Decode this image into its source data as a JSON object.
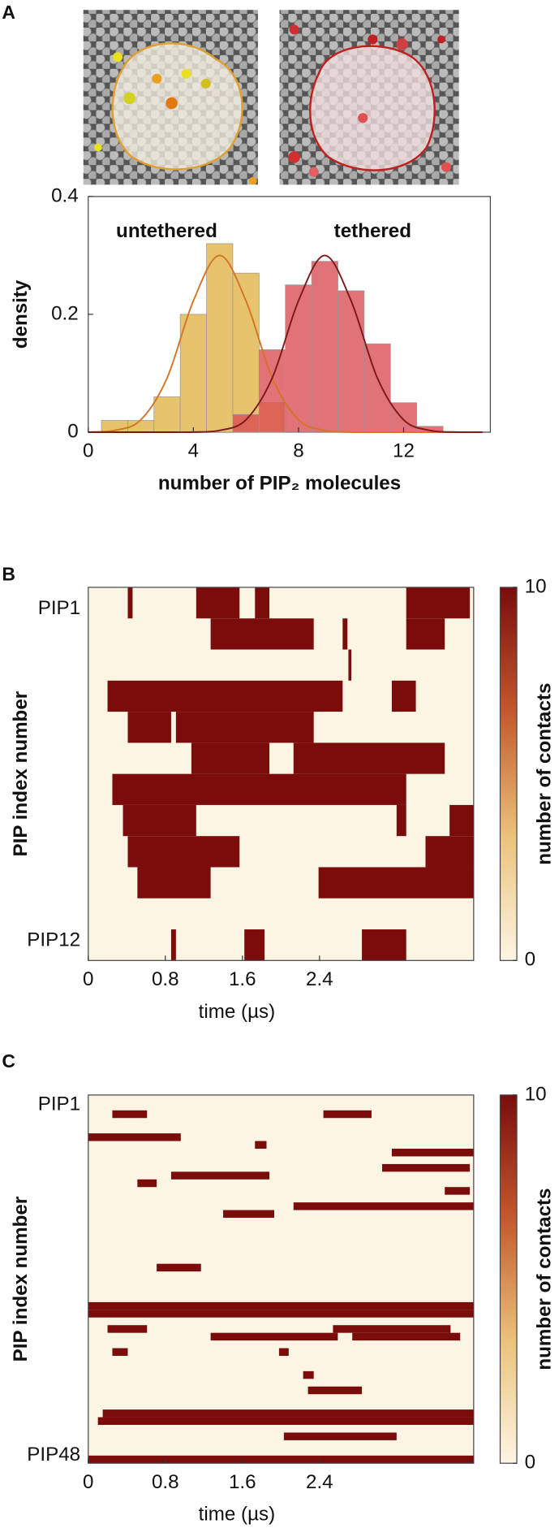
{
  "chart_data": [
    {
      "type": "histogram",
      "panel": "A",
      "ylabel": "density",
      "xlabel": "number of PIP₂ molecules",
      "xlim": [
        0,
        15.3
      ],
      "ylim": [
        0,
        0.4
      ],
      "xticks": [
        0,
        4,
        8,
        12
      ],
      "yticks": [
        0,
        0.2,
        0.4
      ],
      "series": [
        {
          "name": "untethered",
          "color": "#e3bc5c",
          "bins": [
            0.5,
            1.5,
            2.5,
            3.5,
            4.5,
            5.5,
            6.5,
            7.5
          ],
          "values": [
            0.02,
            0.02,
            0.06,
            0.2,
            0.32,
            0.27,
            0.05
          ]
        },
        {
          "name": "tethered",
          "color": "#d94a52",
          "bins": [
            5.5,
            6.5,
            7.5,
            8.5,
            9.5,
            10.5,
            11.5,
            12.5,
            13.5
          ],
          "values": [
            0.03,
            0.14,
            0.25,
            0.29,
            0.24,
            0.15,
            0.05,
            0.01
          ]
        }
      ],
      "fits": [
        {
          "color": "#d27526",
          "x": [
            0,
            1,
            2,
            3,
            4,
            5,
            6,
            7,
            8,
            9,
            10,
            11,
            12,
            13,
            14,
            15
          ],
          "y": [
            0.0002,
            0.003,
            0.021,
            0.092,
            0.223,
            0.3,
            0.223,
            0.092,
            0.021,
            0.003,
            0.0002,
            0,
            0,
            0,
            0,
            0
          ]
        },
        {
          "color": "#7a1a1a",
          "x": [
            0,
            1,
            2,
            3,
            4,
            5,
            6,
            7,
            8,
            9,
            10,
            11,
            12,
            13,
            14,
            15
          ],
          "y": [
            0,
            0,
            0,
            0,
            0.0002,
            0.003,
            0.021,
            0.092,
            0.223,
            0.3,
            0.223,
            0.092,
            0.021,
            0.003,
            0.0002,
            0
          ]
        }
      ]
    },
    {
      "type": "heatmap",
      "panel": "B",
      "ylabel": "PIP index number",
      "xlabel": "time (µs)",
      "clabel": "number of contacts",
      "xlim": [
        0,
        4
      ],
      "xticks": [
        0,
        0.8,
        1.6,
        2.4
      ],
      "clim": [
        0,
        10
      ],
      "cticks": [
        0,
        10
      ],
      "colormap": [
        "#fdf5e4",
        "#ebc27a",
        "#c4582e",
        "#7a0c0c"
      ],
      "categories": [
        "PIP1",
        null,
        null,
        null,
        null,
        null,
        null,
        null,
        null,
        null,
        null,
        "PIP12"
      ],
      "rows": [
        [
          [
            0.41,
            0.46,
            10
          ],
          [
            1.12,
            1.57,
            10
          ],
          [
            1.73,
            1.88,
            10
          ],
          [
            3.3,
            3.96,
            10
          ]
        ],
        [
          [
            1.27,
            2.34,
            10
          ],
          [
            2.64,
            2.69,
            10
          ],
          [
            3.3,
            3.7,
            10
          ]
        ],
        [
          [
            2.7,
            2.73,
            10
          ]
        ],
        [
          [
            0.2,
            2.64,
            10
          ],
          [
            3.15,
            3.4,
            10
          ]
        ],
        [
          [
            0.41,
            0.86,
            10
          ],
          [
            0.91,
            2.34,
            10
          ]
        ],
        [
          [
            1.07,
            1.88,
            10
          ],
          [
            2.13,
            3.7,
            10
          ]
        ],
        [
          [
            0.25,
            3.3,
            10
          ]
        ],
        [
          [
            0.36,
            1.12,
            10
          ],
          [
            3.2,
            3.3,
            10
          ],
          [
            3.75,
            4,
            10
          ]
        ],
        [
          [
            0.41,
            1.57,
            10
          ],
          [
            3.5,
            4,
            10
          ]
        ],
        [
          [
            0.51,
            1.27,
            10
          ],
          [
            2.39,
            4,
            10
          ]
        ],
        [],
        [
          [
            0.86,
            0.91,
            10
          ],
          [
            1.62,
            1.83,
            10
          ],
          [
            2.84,
            3.3,
            10
          ]
        ]
      ]
    },
    {
      "type": "heatmap",
      "panel": "C",
      "ylabel": "PIP index number",
      "xlabel": "time (µs)",
      "clabel": "number of contacts",
      "xlim": [
        0,
        4
      ],
      "xticks": [
        0,
        0.8,
        1.6,
        2.4
      ],
      "clim": [
        0,
        10
      ],
      "cticks": [
        0,
        10
      ],
      "colormap": [
        "#fdf5e4",
        "#ebc27a",
        "#c4582e",
        "#7a0c0c"
      ],
      "categories": [
        "PIP1",
        null,
        null,
        null,
        null,
        null,
        null,
        null,
        null,
        null,
        null,
        null,
        null,
        null,
        null,
        null,
        null,
        null,
        null,
        null,
        null,
        null,
        null,
        null,
        null,
        null,
        null,
        null,
        null,
        null,
        null,
        null,
        null,
        null,
        null,
        null,
        null,
        null,
        null,
        null,
        null,
        null,
        null,
        null,
        null,
        null,
        null,
        "PIP48"
      ],
      "rows": [
        [],
        [],
        [
          [
            0.25,
            0.61,
            10
          ],
          [
            2.44,
            2.94,
            10
          ]
        ],
        [],
        [],
        [
          [
            0,
            0.96,
            10
          ]
        ],
        [
          [
            1.73,
            1.85,
            10
          ]
        ],
        [
          [
            3.15,
            4,
            10
          ]
        ],
        [],
        [
          [
            3.05,
            3.96,
            10
          ]
        ],
        [
          [
            0.86,
            1.88,
            10
          ]
        ],
        [
          [
            0.51,
            0.71,
            10
          ]
        ],
        [
          [
            3.7,
            3.96,
            10
          ]
        ],
        [],
        [
          [
            2.13,
            4,
            10
          ]
        ],
        [
          [
            1.4,
            1.93,
            10
          ]
        ],
        [],
        [],
        [],
        [],
        [],
        [],
        [
          [
            0.71,
            1.17,
            10
          ]
        ],
        [],
        [],
        [],
        [],
        [
          [
            0,
            4,
            10
          ]
        ],
        [
          [
            0,
            4,
            10
          ]
        ],
        [],
        [
          [
            0.2,
            0.61,
            10
          ],
          [
            2.54,
            3.76,
            10
          ]
        ],
        [
          [
            1.27,
            2.59,
            10
          ],
          [
            2.74,
            3.86,
            10
          ]
        ],
        [],
        [
          [
            0.25,
            0.41,
            10
          ],
          [
            1.98,
            2.08,
            10
          ]
        ],
        [],
        [],
        [
          [
            2.23,
            2.34,
            10
          ]
        ],
        [],
        [
          [
            2.28,
            2.84,
            10
          ]
        ],
        [],
        [],
        [
          [
            0.15,
            4,
            10
          ]
        ],
        [
          [
            0.1,
            4,
            10
          ]
        ],
        [],
        [
          [
            2.03,
            3.2,
            10
          ]
        ],
        [],
        [],
        [
          [
            0,
            4,
            10
          ]
        ]
      ]
    }
  ]
}
